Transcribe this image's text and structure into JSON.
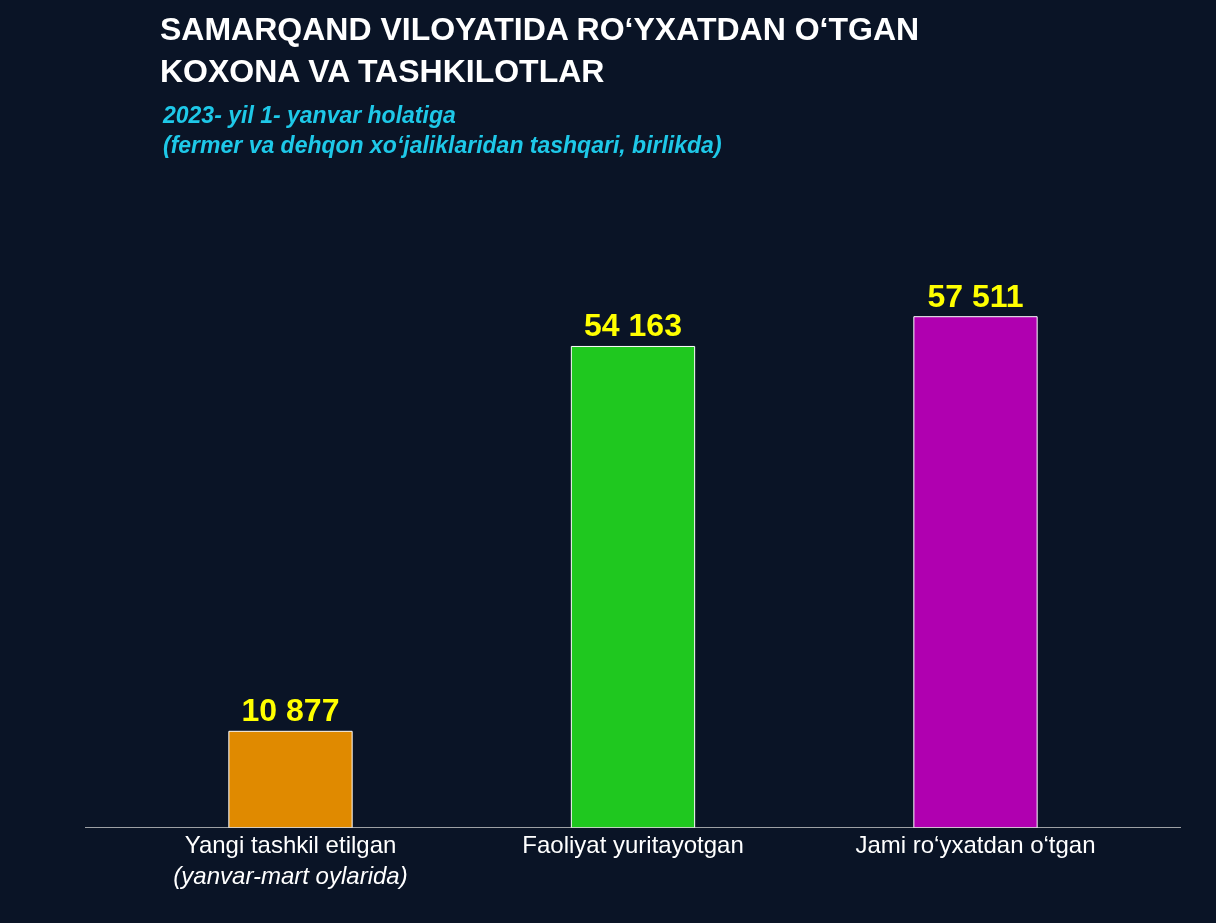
{
  "chart_data": {
    "type": "bar",
    "title": "SAMARQAND VILOYATIDA RO‘YXATDAN O‘TGAN\nKOXONA VA TASHKILOTLAR",
    "subtitle": "2023- yil 1- yanvar holatiga\n(fermer va dehqon xo‘jaliklaridan tashqari, birlikda)",
    "categories": [
      "Yangi tashkil etilgan\n(yanvar-mart oylarida)",
      "Faoliyat yuritayotgan",
      "Jami ro‘yxatdan o‘tgan"
    ],
    "values": [
      10877,
      54163,
      57511
    ],
    "colors": [
      "#e08a00",
      "#1fc81f",
      "#b000b0"
    ],
    "value_labels": [
      "10 877",
      "54 163",
      "57 511"
    ]
  }
}
